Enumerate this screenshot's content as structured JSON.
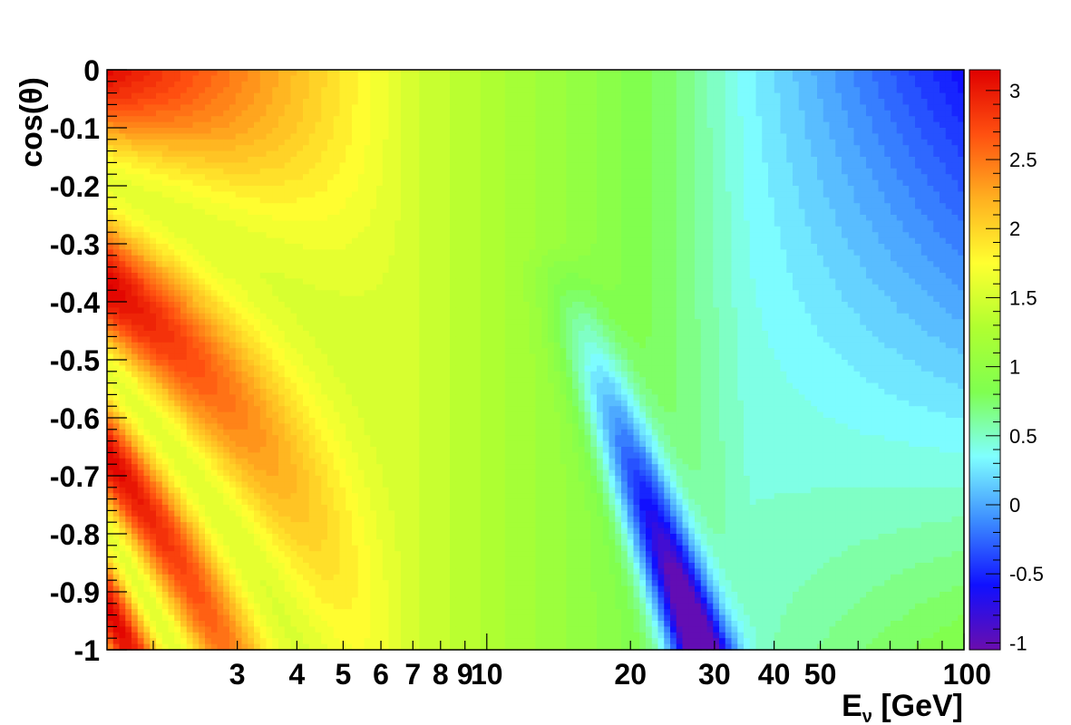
{
  "chart_data": {
    "type": "heatmap",
    "title": "",
    "xlabel": {
      "base": "E",
      "subscript": "ν",
      "rest": " [GeV]"
    },
    "ylabel": "cos(θ)",
    "x_scale": "log",
    "xlim": [
      1.6,
      100
    ],
    "ylim": [
      -1,
      0
    ],
    "zlim": [
      -1.05,
      3.15
    ],
    "x_ticks": [
      {
        "value": 3,
        "label": "3"
      },
      {
        "value": 4,
        "label": "4"
      },
      {
        "value": 5,
        "label": "5"
      },
      {
        "value": 6,
        "label": "6"
      },
      {
        "value": 7,
        "label": "7"
      },
      {
        "value": 8,
        "label": "8"
      },
      {
        "value": 9,
        "label": "9"
      },
      {
        "value": 10,
        "label": "10"
      },
      {
        "value": 20,
        "label": "20"
      },
      {
        "value": 30,
        "label": "30"
      },
      {
        "value": 40,
        "label": "40"
      },
      {
        "value": 50,
        "label": "50"
      },
      {
        "value": 100,
        "label": "100"
      }
    ],
    "y_ticks": [
      {
        "value": 0,
        "label": "0"
      },
      {
        "value": -0.1,
        "label": "-0.1"
      },
      {
        "value": -0.2,
        "label": "-0.2"
      },
      {
        "value": -0.3,
        "label": "-0.3"
      },
      {
        "value": -0.4,
        "label": "-0.4"
      },
      {
        "value": -0.5,
        "label": "-0.5"
      },
      {
        "value": -0.6,
        "label": "-0.6"
      },
      {
        "value": -0.7,
        "label": "-0.7"
      },
      {
        "value": -0.8,
        "label": "-0.8"
      },
      {
        "value": -0.9,
        "label": "-0.9"
      },
      {
        "value": -1,
        "label": "-1"
      }
    ],
    "colorbar_ticks": [
      {
        "value": 3,
        "label": "3"
      },
      {
        "value": 2.5,
        "label": "2.5"
      },
      {
        "value": 2,
        "label": "2"
      },
      {
        "value": 1.5,
        "label": "1.5"
      },
      {
        "value": 1,
        "label": "1"
      },
      {
        "value": 0.5,
        "label": "0.5"
      },
      {
        "value": 0,
        "label": "0"
      },
      {
        "value": -0.5,
        "label": "-0.5"
      },
      {
        "value": -1,
        "label": "-1"
      }
    ],
    "colormap": [
      "#6a0dad",
      "#1010ff",
      "#3c8cff",
      "#7fffff",
      "#7fff50",
      "#b0ff30",
      "#ffff30",
      "#ffb020",
      "#ff5010",
      "#e00000"
    ],
    "grid": false,
    "legend": "colorbar-right"
  }
}
